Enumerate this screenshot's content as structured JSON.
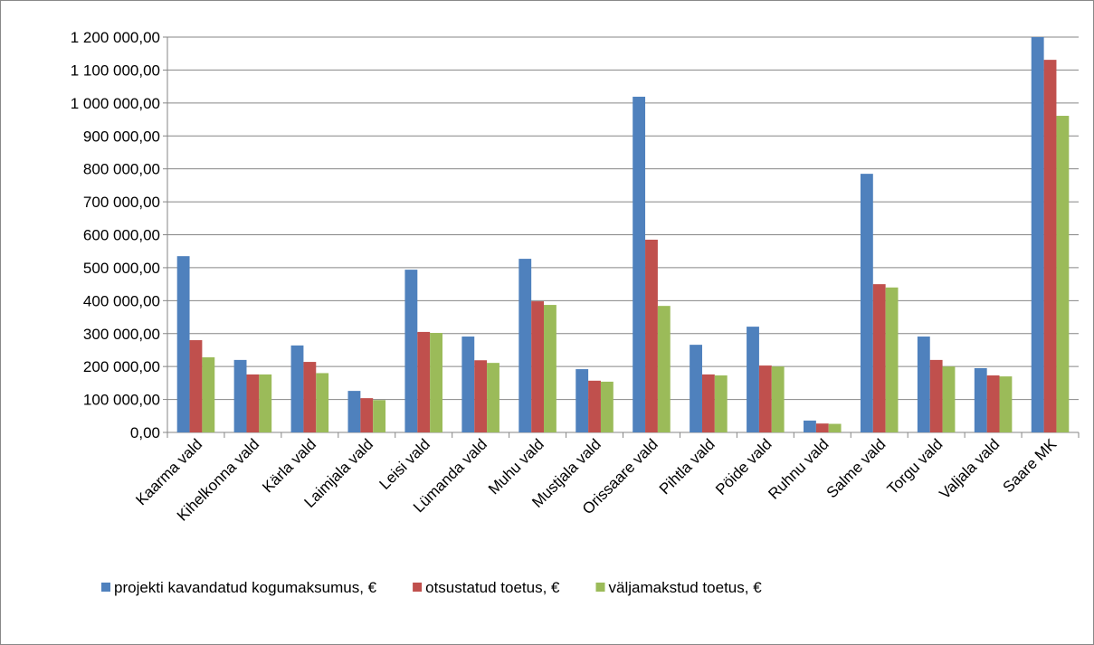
{
  "chart_data": {
    "type": "bar",
    "categories": [
      "Kaarma vald",
      "Kihelkonna vald",
      "Kärla vald",
      "Laimjala vald",
      "Leisi vald",
      "Lümanda vald",
      "Muhu vald",
      "Mustjala vald",
      "Orissaare vald",
      "Pihtla vald",
      "Pöide vald",
      "Ruhnu vald",
      "Salme vald",
      "Torgu vald",
      "Valjala vald",
      "Saare MK"
    ],
    "series": [
      {
        "name": "projekti kavandatud kogumaksumus, €",
        "color": "#4f81bd",
        "values": [
          535000,
          220000,
          264000,
          126000,
          494000,
          291000,
          527000,
          192000,
          1019000,
          266000,
          321000,
          36000,
          785000,
          291000,
          195000,
          1200000
        ]
      },
      {
        "name": "otsustatud toetus, €",
        "color": "#c0504d",
        "values": [
          280000,
          176000,
          214000,
          104000,
          305000,
          219000,
          398000,
          157000,
          585000,
          176000,
          203000,
          27000,
          450000,
          220000,
          173000,
          1131000
        ]
      },
      {
        "name": "väljamakstud toetus, €",
        "color": "#9bbb59",
        "values": [
          228000,
          176000,
          180000,
          98000,
          302000,
          211000,
          387000,
          154000,
          384000,
          173000,
          200000,
          26000,
          440000,
          200000,
          170000,
          961000
        ]
      }
    ],
    "ylim": [
      0,
      1200000
    ],
    "yticks": [
      {
        "value": 0,
        "label": "0,00"
      },
      {
        "value": 100000,
        "label": "100 000,00"
      },
      {
        "value": 200000,
        "label": "200 000,00"
      },
      {
        "value": 300000,
        "label": "300 000,00"
      },
      {
        "value": 400000,
        "label": "400 000,00"
      },
      {
        "value": 500000,
        "label": "500 000,00"
      },
      {
        "value": 600000,
        "label": "600 000,00"
      },
      {
        "value": 700000,
        "label": "700 000,00"
      },
      {
        "value": 800000,
        "label": "800 000,00"
      },
      {
        "value": 900000,
        "label": "900 000,00"
      },
      {
        "value": 1000000,
        "label": "1 000 000,00"
      },
      {
        "value": 1100000,
        "label": "1 100 000,00"
      },
      {
        "value": 1200000,
        "label": "1 200 000,00"
      }
    ],
    "grid": true,
    "legend": "bottom"
  }
}
